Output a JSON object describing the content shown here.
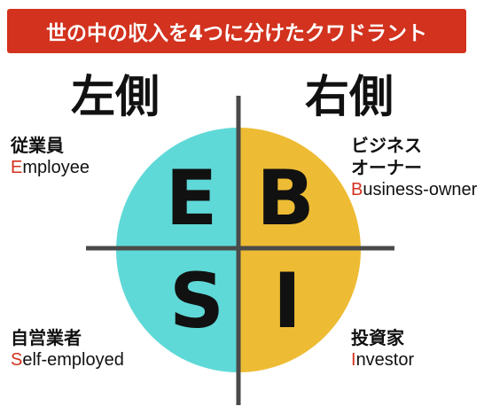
{
  "title": "世の中の収入を4つに分けたクワドラント",
  "sides": {
    "left": "左側",
    "right": "右側"
  },
  "quadrants": {
    "employee": {
      "letter": "E",
      "ja": "従業員",
      "en_initial": "E",
      "en_rest": "mployee"
    },
    "business_owner": {
      "letter": "B",
      "ja_line1": "ビジネス",
      "ja_line2": "オーナー",
      "en_initial": "B",
      "en_rest": "usiness-owner"
    },
    "self_employed": {
      "letter": "S",
      "ja": "自営業者",
      "en_initial": "S",
      "en_rest": "elf-employed"
    },
    "investor": {
      "letter": "I",
      "ja": "投資家",
      "en_initial": "I",
      "en_rest": "nvestor"
    }
  },
  "colors": {
    "banner": "#d2321e",
    "left_half": "#5fd9d7",
    "right_half": "#eebc34",
    "axes": "#4a4a4a",
    "letters": "#111111",
    "initial_letter": "#d2321e"
  }
}
